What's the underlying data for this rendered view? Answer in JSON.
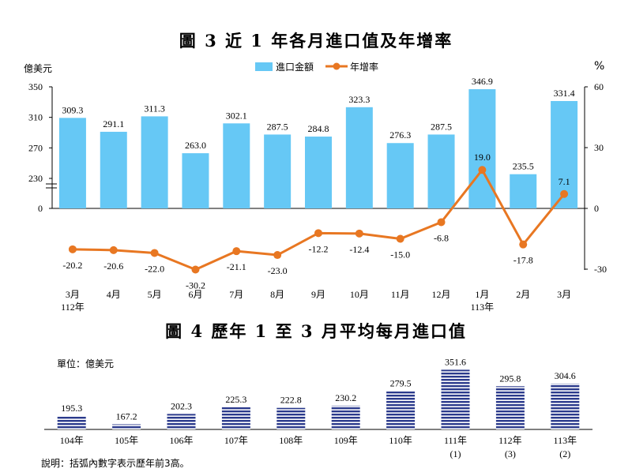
{
  "chart3": {
    "title": "圖 3 近 1 年各月進口值及年增率",
    "unit_left": "億美元",
    "unit_right": "%",
    "legend": {
      "bar": "進口金額",
      "line": "年增率"
    },
    "colors": {
      "bar": "#66c8f5",
      "line": "#e87722"
    }
  },
  "chart4": {
    "title": "圖 4 歷年 1 至 3 月平均每月進口值",
    "unit": "單位：億美元",
    "color": "#2b3a8c"
  },
  "note": "說明：括弧內數字表示歷年前3高。",
  "chart_data": [
    {
      "type": "bar+line",
      "title": "圖 3 近 1 年各月進口值及年增率",
      "categories": [
        "3月",
        "4月",
        "5月",
        "6月",
        "7月",
        "8月",
        "9月",
        "10月",
        "11月",
        "12月",
        "1月",
        "2月",
        "3月"
      ],
      "category_sublabels": [
        "112年",
        "",
        "",
        "",
        "",
        "",
        "",
        "",
        "",
        "",
        "113年",
        "",
        ""
      ],
      "series": [
        {
          "name": "進口金額",
          "type": "bar",
          "axis": "left",
          "values": [
            309.3,
            291.1,
            311.3,
            263.0,
            302.1,
            287.5,
            284.8,
            323.3,
            276.3,
            287.5,
            346.9,
            235.5,
            331.4
          ]
        },
        {
          "name": "年增率",
          "type": "line",
          "axis": "right",
          "values": [
            -20.2,
            -20.6,
            -22.0,
            -30.2,
            -21.1,
            -23.0,
            -12.2,
            -12.4,
            -15.0,
            -6.8,
            19.0,
            -17.8,
            7.1
          ]
        }
      ],
      "ylabel_left": "億美元",
      "ylabel_right": "%",
      "left_ticks": [
        0,
        230,
        270,
        310,
        350
      ],
      "left_axis_break": [
        0,
        230
      ],
      "right_ticks": [
        60,
        30,
        0,
        -30
      ],
      "ylim_right": [
        -30,
        60
      ],
      "legend_position": "top-center"
    },
    {
      "type": "bar",
      "title": "圖 4 歷年 1 至 3 月平均每月進口值",
      "categories": [
        "104年",
        "105年",
        "106年",
        "107年",
        "108年",
        "109年",
        "110年",
        "111年",
        "112年",
        "113年"
      ],
      "values": [
        195.3,
        167.2,
        202.3,
        225.3,
        222.8,
        230.2,
        279.5,
        351.6,
        295.8,
        304.6
      ],
      "rank_labels": [
        "",
        "",
        "",
        "",
        "",
        "",
        "",
        "(1)",
        "(3)",
        "(2)"
      ],
      "ylabel": "億美元"
    }
  ]
}
